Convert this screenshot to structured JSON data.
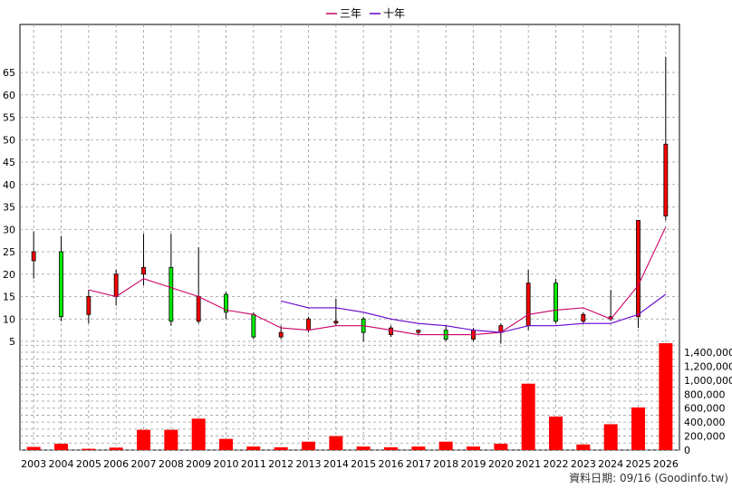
{
  "chart_data": {
    "type": "candlestick",
    "categories": [
      "2003",
      "2004",
      "2005",
      "2006",
      "2007",
      "2008",
      "2009",
      "2010",
      "2011",
      "2012",
      "2013",
      "2014",
      "2015",
      "2016",
      "2017",
      "2018",
      "2019",
      "2020",
      "2021",
      "2022",
      "2023",
      "2024",
      "2025",
      "2026"
    ],
    "price_axis": {
      "ticks": [
        5,
        10,
        15,
        20,
        25,
        30,
        35,
        40,
        45,
        50,
        55,
        60,
        65
      ],
      "range": [
        0,
        70
      ]
    },
    "volume_axis": {
      "ticks": [
        "0",
        "200,000",
        "400,000",
        "600,000",
        "800,000",
        "1,000,000",
        "1,200,000",
        "1,400,000"
      ],
      "range": [
        0,
        1600000
      ]
    },
    "grid": true,
    "legend_position": "top-center",
    "legend": [
      {
        "name": "三年",
        "color": "#cc0066"
      },
      {
        "name": "十年",
        "color": "#6600cc"
      }
    ],
    "candles": [
      {
        "open": 23.0,
        "close": 25.0,
        "high": 29.5,
        "low": 19.0
      },
      {
        "open": 25.0,
        "close": 10.5,
        "high": 28.5,
        "low": 9.5
      },
      {
        "open": 11.0,
        "close": 15.0,
        "high": 16.5,
        "low": 9.0
      },
      {
        "open": 15.0,
        "close": 20.0,
        "high": 21.0,
        "low": 13.0
      },
      {
        "open": 20.0,
        "close": 21.5,
        "high": 29.0,
        "low": 17.5
      },
      {
        "open": 21.5,
        "close": 9.5,
        "high": 29.0,
        "low": 8.5
      },
      {
        "open": 9.5,
        "close": 15.0,
        "high": 26.0,
        "low": 9.0
      },
      {
        "open": 15.5,
        "close": 11.5,
        "high": 16.0,
        "low": 10.0
      },
      {
        "open": 11.0,
        "close": 6.0,
        "high": 11.5,
        "low": 5.5
      },
      {
        "open": 6.0,
        "close": 7.0,
        "high": 8.5,
        "low": 5.5
      },
      {
        "open": 7.5,
        "close": 10.0,
        "high": 10.5,
        "low": 7.0
      },
      {
        "open": 9.5,
        "close": 9.5,
        "high": 14.5,
        "low": 8.5
      },
      {
        "open": 10.0,
        "close": 7.0,
        "high": 10.5,
        "low": 5.0
      },
      {
        "open": 6.5,
        "close": 8.0,
        "high": 8.5,
        "low": 6.0
      },
      {
        "open": 7.0,
        "close": 7.5,
        "high": 7.5,
        "low": 6.5
      },
      {
        "open": 7.5,
        "close": 5.5,
        "high": 8.5,
        "low": 5.0
      },
      {
        "open": 5.5,
        "close": 7.5,
        "high": 8.0,
        "low": 5.0
      },
      {
        "open": 7.0,
        "close": 8.5,
        "high": 9.0,
        "low": 4.5
      },
      {
        "open": 8.5,
        "close": 18.0,
        "high": 21.0,
        "low": 7.5
      },
      {
        "open": 18.0,
        "close": 9.5,
        "high": 19.0,
        "low": 9.0
      },
      {
        "open": 9.5,
        "close": 11.0,
        "high": 11.5,
        "low": 9.0
      },
      {
        "open": 10.0,
        "close": 10.5,
        "high": 16.5,
        "low": 9.5
      },
      {
        "open": 10.5,
        "close": 32.0,
        "high": 32.0,
        "low": 8.0
      },
      {
        "open": 33.0,
        "close": 49.0,
        "high": 68.5,
        "low": 32.0
      }
    ],
    "series": [
      {
        "name": "三年",
        "values": [
          null,
          null,
          16.5,
          15.0,
          19.0,
          17.0,
          15.0,
          12.0,
          11.0,
          8.0,
          7.5,
          8.5,
          8.5,
          7.5,
          6.5,
          6.5,
          6.5,
          7.0,
          11.0,
          12.0,
          12.5,
          10.0,
          17.5,
          30.5
        ]
      },
      {
        "name": "十年",
        "values": [
          null,
          null,
          null,
          null,
          null,
          null,
          null,
          null,
          null,
          14.0,
          12.5,
          12.5,
          11.5,
          10.0,
          9.0,
          8.5,
          7.5,
          7.0,
          8.5,
          8.5,
          9.0,
          9.0,
          11.0,
          15.5
        ]
      }
    ],
    "volume": [
      45000,
      90000,
      18000,
      35000,
      290000,
      290000,
      450000,
      160000,
      50000,
      40000,
      120000,
      200000,
      50000,
      40000,
      50000,
      120000,
      50000,
      90000,
      950000,
      480000,
      80000,
      370000,
      610000,
      1530000
    ]
  },
  "footer": {
    "credit": "資料日期: 09/16  (Goodinfo.tw)"
  },
  "colors": {
    "up": "#ff0000",
    "down": "#00ee00",
    "volume": "#ff0000",
    "grid": "#999999"
  }
}
